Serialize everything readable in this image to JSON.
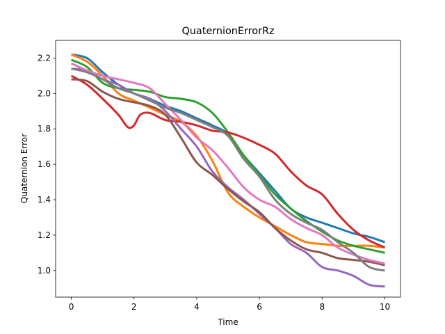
{
  "chart_data": {
    "type": "line",
    "title": "QuaternionErrorRz",
    "xlabel": "Time",
    "ylabel": "Quaternion Error",
    "xlim": [
      -0.5,
      10.5
    ],
    "ylim": [
      0.85,
      2.3
    ],
    "xticks": [
      0,
      2,
      4,
      6,
      8,
      10
    ],
    "yticks": [
      1.0,
      1.2,
      1.4,
      1.6,
      1.8,
      2.0,
      2.2
    ],
    "ytick_labels": [
      "1.0",
      "1.2",
      "1.4",
      "1.6",
      "1.8",
      "2.0",
      "2.2"
    ],
    "grid": false,
    "legend": "none",
    "series": [
      {
        "color": "#1f77b4",
        "x": [
          0,
          0.5,
          1,
          1.5,
          2,
          2.5,
          3,
          3.5,
          4,
          4.5,
          5,
          5.5,
          6,
          6.5,
          7,
          7.5,
          8,
          8.5,
          9,
          9.5,
          10
        ],
        "y": [
          2.22,
          2.2,
          2.12,
          2.05,
          2.0,
          1.97,
          1.93,
          1.9,
          1.86,
          1.82,
          1.77,
          1.65,
          1.55,
          1.45,
          1.35,
          1.3,
          1.27,
          1.24,
          1.21,
          1.19,
          1.16
        ]
      },
      {
        "color": "#ff7f0e",
        "x": [
          0,
          0.5,
          1,
          1.5,
          2,
          2.5,
          3,
          3.5,
          4,
          4.5,
          5,
          5.5,
          6,
          6.5,
          7,
          7.5,
          8,
          8.5,
          9,
          9.5,
          10
        ],
        "y": [
          2.22,
          2.18,
          2.1,
          2.0,
          1.96,
          1.92,
          1.88,
          1.84,
          1.76,
          1.62,
          1.44,
          1.36,
          1.3,
          1.25,
          1.2,
          1.16,
          1.15,
          1.14,
          1.14,
          1.14,
          1.13
        ]
      },
      {
        "color": "#2ca02c",
        "x": [
          0,
          0.5,
          1,
          1.5,
          2,
          2.5,
          3,
          3.5,
          4,
          4.5,
          5,
          5.5,
          6,
          6.5,
          7,
          7.5,
          8,
          8.5,
          9,
          9.5,
          10
        ],
        "y": [
          2.19,
          2.15,
          2.06,
          2.03,
          2.02,
          2.01,
          1.98,
          1.97,
          1.95,
          1.89,
          1.78,
          1.65,
          1.54,
          1.43,
          1.35,
          1.28,
          1.22,
          1.17,
          1.14,
          1.12,
          1.1
        ]
      },
      {
        "color": "#d62728",
        "x": [
          0,
          0.5,
          1,
          1.5,
          1.8,
          2,
          2.2,
          2.5,
          3,
          3.5,
          4,
          4.5,
          5,
          5.5,
          6,
          6.5,
          7,
          7.5,
          8,
          8.5,
          9,
          9.5,
          10
        ],
        "y": [
          2.1,
          2.05,
          1.97,
          1.88,
          1.81,
          1.82,
          1.88,
          1.89,
          1.85,
          1.84,
          1.82,
          1.79,
          1.78,
          1.75,
          1.71,
          1.66,
          1.56,
          1.48,
          1.43,
          1.32,
          1.23,
          1.17,
          1.13
        ]
      },
      {
        "color": "#9467bd",
        "x": [
          0,
          0.5,
          1,
          1.5,
          2,
          2.5,
          3,
          3.5,
          4,
          4.5,
          5,
          5.5,
          6,
          6.5,
          7,
          7.5,
          8,
          8.5,
          9,
          9.5,
          10
        ],
        "y": [
          2.14,
          2.13,
          2.08,
          2.05,
          2.0,
          1.97,
          1.9,
          1.8,
          1.7,
          1.56,
          1.47,
          1.4,
          1.32,
          1.24,
          1.15,
          1.1,
          1.02,
          1.0,
          0.97,
          0.92,
          0.91
        ]
      },
      {
        "color": "#8c564b",
        "x": [
          0,
          0.5,
          1,
          1.5,
          2,
          2.5,
          3,
          3.5,
          4,
          4.5,
          5,
          5.5,
          6,
          6.5,
          7,
          7.5,
          8,
          8.5,
          9,
          9.5,
          10
        ],
        "y": [
          2.08,
          2.07,
          2.01,
          1.97,
          1.95,
          1.93,
          1.88,
          1.75,
          1.61,
          1.54,
          1.46,
          1.39,
          1.33,
          1.24,
          1.17,
          1.12,
          1.1,
          1.07,
          1.06,
          1.05,
          1.03
        ]
      },
      {
        "color": "#e377c2",
        "x": [
          0,
          0.5,
          1,
          1.5,
          2,
          2.5,
          3,
          3.5,
          4,
          4.5,
          5,
          5.5,
          6,
          6.5,
          7,
          7.5,
          8,
          8.5,
          9,
          9.5,
          10
        ],
        "y": [
          2.17,
          2.13,
          2.1,
          2.08,
          2.06,
          2.03,
          1.94,
          1.85,
          1.75,
          1.68,
          1.58,
          1.47,
          1.4,
          1.36,
          1.29,
          1.24,
          1.2,
          1.13,
          1.09,
          1.06,
          1.04
        ]
      },
      {
        "color": "#7f7f7f",
        "x": [
          0,
          0.5,
          1,
          1.5,
          2,
          2.5,
          3,
          3.5,
          4,
          4.5,
          5,
          5.5,
          6,
          6.5,
          7,
          7.5,
          8,
          8.5,
          9,
          9.5,
          10
        ],
        "y": [
          2.14,
          2.12,
          2.08,
          2.03,
          2.0,
          1.96,
          1.92,
          1.89,
          1.85,
          1.81,
          1.76,
          1.63,
          1.53,
          1.4,
          1.32,
          1.27,
          1.23,
          1.16,
          1.1,
          1.02,
          1.0
        ]
      }
    ]
  }
}
